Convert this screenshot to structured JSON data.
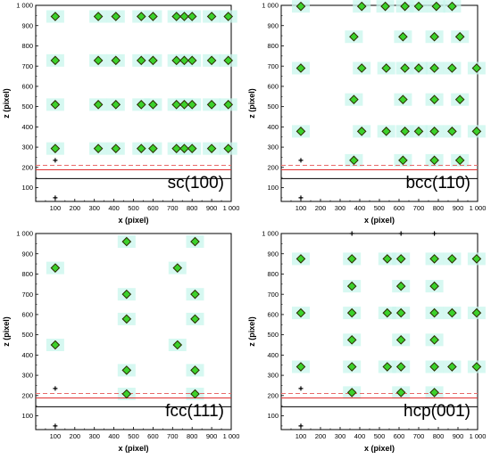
{
  "chart_data": [
    {
      "type": "scatter",
      "panel_label": "sc(100)",
      "xlabel": "x (pixel)",
      "ylabel": "z (pixel)",
      "xlim": [
        0,
        1000
      ],
      "ylim": [
        50,
        1000
      ],
      "x_ticks": [
        "100",
        "200",
        "300",
        "400",
        "500",
        "600",
        "700",
        "800",
        "900",
        "1 000"
      ],
      "y_ticks": [
        "100",
        "200",
        "300",
        "400",
        "500",
        "600",
        "700",
        "800",
        "900",
        "1 000"
      ],
      "reference_lines": {
        "solid_black": 145,
        "solid_red": 188,
        "dashed_red": 210
      },
      "markers": [
        {
          "x": 100,
          "y": 235
        },
        {
          "x": 100,
          "y": 50
        }
      ],
      "points": [
        {
          "x": 100,
          "y": 945
        },
        {
          "x": 320,
          "y": 945
        },
        {
          "x": 410,
          "y": 945
        },
        {
          "x": 540,
          "y": 945
        },
        {
          "x": 600,
          "y": 945
        },
        {
          "x": 720,
          "y": 945
        },
        {
          "x": 760,
          "y": 945
        },
        {
          "x": 800,
          "y": 945
        },
        {
          "x": 900,
          "y": 945
        },
        {
          "x": 985,
          "y": 945
        },
        {
          "x": 100,
          "y": 728
        },
        {
          "x": 320,
          "y": 728
        },
        {
          "x": 410,
          "y": 728
        },
        {
          "x": 540,
          "y": 728
        },
        {
          "x": 600,
          "y": 728
        },
        {
          "x": 720,
          "y": 728
        },
        {
          "x": 760,
          "y": 728
        },
        {
          "x": 800,
          "y": 728
        },
        {
          "x": 900,
          "y": 728
        },
        {
          "x": 985,
          "y": 728
        },
        {
          "x": 100,
          "y": 510
        },
        {
          "x": 320,
          "y": 510
        },
        {
          "x": 410,
          "y": 510
        },
        {
          "x": 540,
          "y": 510
        },
        {
          "x": 600,
          "y": 510
        },
        {
          "x": 720,
          "y": 510
        },
        {
          "x": 760,
          "y": 510
        },
        {
          "x": 800,
          "y": 510
        },
        {
          "x": 900,
          "y": 510
        },
        {
          "x": 985,
          "y": 510
        },
        {
          "x": 100,
          "y": 293
        },
        {
          "x": 320,
          "y": 293
        },
        {
          "x": 410,
          "y": 293
        },
        {
          "x": 540,
          "y": 293
        },
        {
          "x": 600,
          "y": 293
        },
        {
          "x": 720,
          "y": 293
        },
        {
          "x": 760,
          "y": 293
        },
        {
          "x": 800,
          "y": 293
        },
        {
          "x": 900,
          "y": 293
        },
        {
          "x": 985,
          "y": 293
        }
      ]
    },
    {
      "type": "scatter",
      "panel_label": "bcc(110)",
      "xlabel": "x (pixel)",
      "ylabel": "z (pixel)",
      "xlim": [
        0,
        1000
      ],
      "ylim": [
        50,
        1000
      ],
      "x_ticks": [
        "100",
        "200",
        "300",
        "400",
        "500",
        "600",
        "700",
        "800",
        "900",
        "1 000"
      ],
      "y_ticks": [
        "100",
        "200",
        "300",
        "400",
        "500",
        "600",
        "700",
        "800",
        "900",
        "1 000"
      ],
      "reference_lines": {
        "solid_black": 145,
        "solid_red": 188,
        "dashed_red": 210
      },
      "markers": [
        {
          "x": 100,
          "y": 235
        },
        {
          "x": 100,
          "y": 50
        }
      ],
      "points": [
        {
          "x": 100,
          "y": 995
        },
        {
          "x": 410,
          "y": 995
        },
        {
          "x": 530,
          "y": 995
        },
        {
          "x": 630,
          "y": 995
        },
        {
          "x": 700,
          "y": 995
        },
        {
          "x": 790,
          "y": 995
        },
        {
          "x": 870,
          "y": 995
        },
        {
          "x": 370,
          "y": 845
        },
        {
          "x": 620,
          "y": 845
        },
        {
          "x": 780,
          "y": 845
        },
        {
          "x": 910,
          "y": 845
        },
        {
          "x": 100,
          "y": 690
        },
        {
          "x": 410,
          "y": 690
        },
        {
          "x": 535,
          "y": 690
        },
        {
          "x": 630,
          "y": 690
        },
        {
          "x": 700,
          "y": 690
        },
        {
          "x": 780,
          "y": 690
        },
        {
          "x": 870,
          "y": 690
        },
        {
          "x": 995,
          "y": 690
        },
        {
          "x": 370,
          "y": 535
        },
        {
          "x": 620,
          "y": 535
        },
        {
          "x": 780,
          "y": 535
        },
        {
          "x": 910,
          "y": 535
        },
        {
          "x": 100,
          "y": 378
        },
        {
          "x": 410,
          "y": 378
        },
        {
          "x": 535,
          "y": 378
        },
        {
          "x": 630,
          "y": 378
        },
        {
          "x": 700,
          "y": 378
        },
        {
          "x": 780,
          "y": 378
        },
        {
          "x": 870,
          "y": 378
        },
        {
          "x": 995,
          "y": 378
        },
        {
          "x": 370,
          "y": 235
        },
        {
          "x": 620,
          "y": 235
        },
        {
          "x": 780,
          "y": 235
        },
        {
          "x": 910,
          "y": 235
        }
      ]
    },
    {
      "type": "scatter",
      "panel_label": "fcc(111)",
      "xlabel": "x (pixel)",
      "ylabel": "z (pixel)",
      "xlim": [
        0,
        1000
      ],
      "ylim": [
        50,
        1000
      ],
      "x_ticks": [
        "100",
        "200",
        "300",
        "400",
        "500",
        "600",
        "700",
        "800",
        "900",
        "1 000"
      ],
      "y_ticks": [
        "100",
        "200",
        "300",
        "400",
        "500",
        "600",
        "700",
        "800",
        "900",
        "1 000"
      ],
      "reference_lines": {
        "solid_black": 145,
        "solid_red": 188,
        "dashed_red": 210
      },
      "markers": [
        {
          "x": 100,
          "y": 235
        },
        {
          "x": 100,
          "y": 50
        }
      ],
      "points": [
        {
          "x": 465,
          "y": 960
        },
        {
          "x": 815,
          "y": 960
        },
        {
          "x": 100,
          "y": 830
        },
        {
          "x": 725,
          "y": 830
        },
        {
          "x": 465,
          "y": 700
        },
        {
          "x": 815,
          "y": 700
        },
        {
          "x": 465,
          "y": 578
        },
        {
          "x": 815,
          "y": 578
        },
        {
          "x": 100,
          "y": 450
        },
        {
          "x": 725,
          "y": 450
        },
        {
          "x": 465,
          "y": 325
        },
        {
          "x": 815,
          "y": 325
        },
        {
          "x": 465,
          "y": 208
        },
        {
          "x": 815,
          "y": 208
        }
      ]
    },
    {
      "type": "scatter",
      "panel_label": "hcp(001)",
      "xlabel": "x (pixel)",
      "ylabel": "z (pixel)",
      "xlim": [
        0,
        1000
      ],
      "ylim": [
        50,
        1000
      ],
      "x_ticks": [
        "100",
        "200",
        "300",
        "400",
        "500",
        "600",
        "700",
        "800",
        "900",
        "1 000"
      ],
      "y_ticks": [
        "100",
        "200",
        "300",
        "400",
        "500",
        "600",
        "700",
        "800",
        "900",
        "1 000"
      ],
      "reference_lines": {
        "solid_black": 145,
        "solid_red": 188,
        "dashed_red": 210
      },
      "markers": [
        {
          "x": 100,
          "y": 235
        },
        {
          "x": 100,
          "y": 50
        },
        {
          "x": 360,
          "y": 1000
        },
        {
          "x": 610,
          "y": 1000
        },
        {
          "x": 780,
          "y": 1000
        }
      ],
      "points": [
        {
          "x": 100,
          "y": 875
        },
        {
          "x": 360,
          "y": 875
        },
        {
          "x": 540,
          "y": 875
        },
        {
          "x": 610,
          "y": 875
        },
        {
          "x": 780,
          "y": 875
        },
        {
          "x": 870,
          "y": 875
        },
        {
          "x": 995,
          "y": 875
        },
        {
          "x": 360,
          "y": 740
        },
        {
          "x": 610,
          "y": 740
        },
        {
          "x": 780,
          "y": 740
        },
        {
          "x": 100,
          "y": 608
        },
        {
          "x": 360,
          "y": 608
        },
        {
          "x": 540,
          "y": 608
        },
        {
          "x": 610,
          "y": 608
        },
        {
          "x": 780,
          "y": 608
        },
        {
          "x": 870,
          "y": 608
        },
        {
          "x": 995,
          "y": 608
        },
        {
          "x": 360,
          "y": 475
        },
        {
          "x": 610,
          "y": 475
        },
        {
          "x": 780,
          "y": 475
        },
        {
          "x": 100,
          "y": 342
        },
        {
          "x": 360,
          "y": 342
        },
        {
          "x": 540,
          "y": 342
        },
        {
          "x": 610,
          "y": 342
        },
        {
          "x": 780,
          "y": 342
        },
        {
          "x": 870,
          "y": 342
        },
        {
          "x": 995,
          "y": 342
        },
        {
          "x": 360,
          "y": 215
        },
        {
          "x": 610,
          "y": 215
        },
        {
          "x": 780,
          "y": 215
        }
      ]
    }
  ],
  "colors": {
    "marker_fill": "#3bd12b",
    "marker_stroke": "#2b2b00",
    "marker_halo": "#c8f5ec",
    "solid_red": "#e03030",
    "dashed_red": "#e86a6a",
    "solid_black": "#000000"
  }
}
